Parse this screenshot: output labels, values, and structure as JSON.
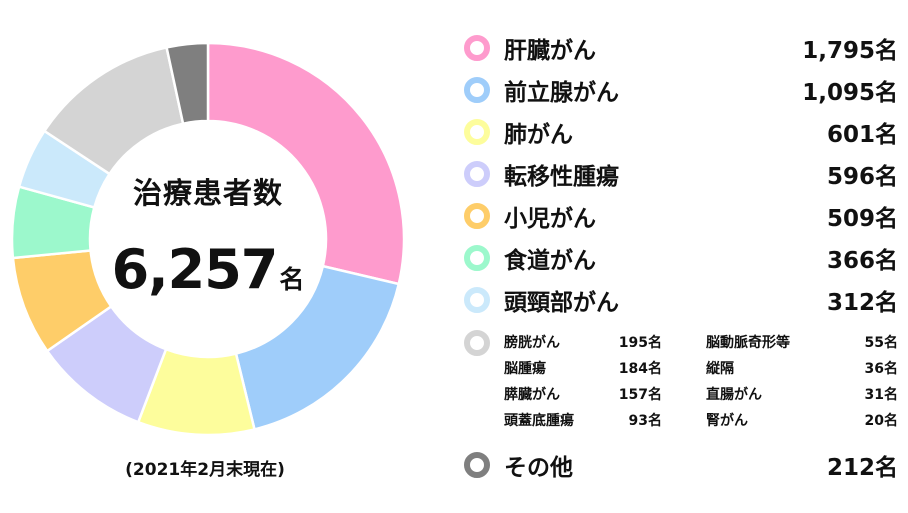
{
  "chart_data": {
    "type": "pie",
    "center_title": "治療患者数",
    "total": "6,257",
    "total_unit": "名",
    "footnote": "(2021年2月末現在)",
    "categories": [
      "肝臓がん",
      "前立腺がん",
      "肺がん",
      "転移性腫瘍",
      "小児がん",
      "食道がん",
      "頭頸部がん",
      "その他"
    ],
    "values": [
      1795,
      1095,
      601,
      596,
      509,
      366,
      312,
      212
    ],
    "value_labels": [
      "1,795名",
      "1,095名",
      "601名",
      "596名",
      "509名",
      "366名",
      "312名",
      "212名"
    ],
    "colors": [
      "#fe9bcd",
      "#9fcdfa",
      "#fdfd9c",
      "#cdcdfb",
      "#fecd69",
      "#9cf8cc",
      "#cbe9fb",
      "#7f7f7f"
    ],
    "sub_category_color": "#d4d4d4",
    "sub_categories": [
      {
        "label": "膀胱がん",
        "value": "195名",
        "value_num": 195
      },
      {
        "label": "脳腫瘍",
        "value": "184名",
        "value_num": 184
      },
      {
        "label": "膵臓がん",
        "value": "157名",
        "value_num": 157
      },
      {
        "label": "頭蓋底腫瘍",
        "value": "93名",
        "value_num": 93
      },
      {
        "label": "脳動脈奇形等",
        "value": "55名",
        "value_num": 55
      },
      {
        "label": "縦隔",
        "value": "36名",
        "value_num": 36
      },
      {
        "label": "直腸がん",
        "value": "31名",
        "value_num": 31
      },
      {
        "label": "腎がん",
        "value": "20名",
        "value_num": 20
      }
    ]
  }
}
